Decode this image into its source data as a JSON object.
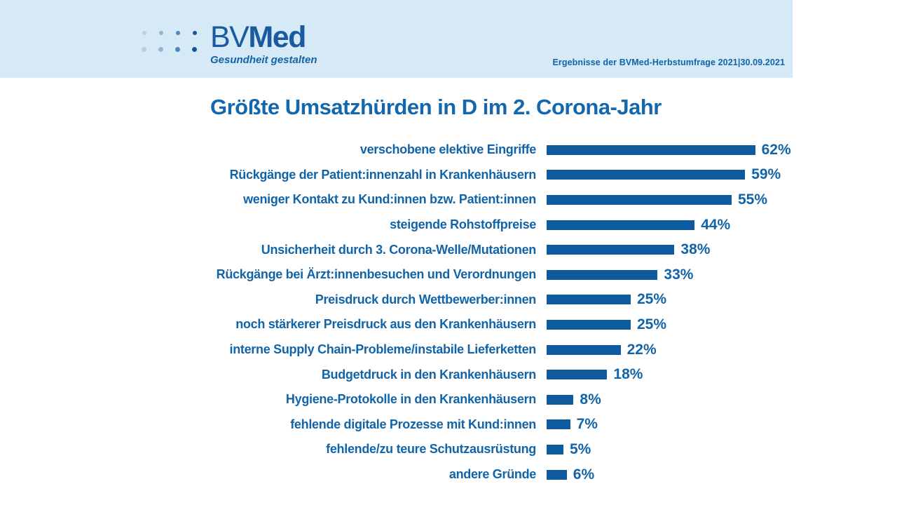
{
  "header": {
    "logo": {
      "name_regular": "BV",
      "name_bold": "Med",
      "tagline": "Gesundheit gestalten"
    },
    "meta": "Ergebnisse der BVMed-Herbstumfrage 2021|30.09.2021"
  },
  "title": "Größte Umsatzhürden in D im 2. Corona-Jahr",
  "colors": {
    "header_bg": "#d5e9f6",
    "bar": "#0d5b9e",
    "text": "#1164a8",
    "title": "#1367ae",
    "logo_text": "#1a5ba0",
    "logo_dot_columns": [
      "#bfcdd9",
      "#93b5d6",
      "#4e87bc",
      "#14589a"
    ]
  },
  "chart_data": {
    "type": "bar",
    "orientation": "horizontal",
    "title": "Größte Umsatzhürden in D im 2. Corona-Jahr",
    "categories": [
      "verschobene elektive Eingriffe",
      "Rückgänge der Patient:innenzahl in Krankenhäusern",
      "weniger Kontakt zu Kund:innen bzw. Patient:innen",
      "steigende Rohstoffpreise",
      "Unsicherheit durch 3. Corona-Welle/Mutationen",
      "Rückgänge bei Ärzt:innenbesuchen und Verordnungen",
      "Preisdruck durch Wettbewerber:innen",
      "noch stärkerer Preisdruck aus den Krankenhäusern",
      "interne Supply Chain-Probleme/instabile Lieferketten",
      "Budgetdruck in den Krankenhäusern",
      "Hygiene-Protokolle in den Krankenhäusern",
      "fehlende digitale Prozesse mit Kund:innen",
      "fehlende/zu teure Schutzausrüstung",
      "andere Gründe"
    ],
    "values": [
      62,
      59,
      55,
      44,
      38,
      33,
      25,
      25,
      22,
      18,
      8,
      7,
      5,
      6
    ],
    "value_suffix": "%",
    "xlim": [
      0,
      65
    ],
    "grid": false,
    "legend": "none",
    "source_note": "Ergebnisse der BVMed-Herbstumfrage 2021|30.09.2021"
  }
}
